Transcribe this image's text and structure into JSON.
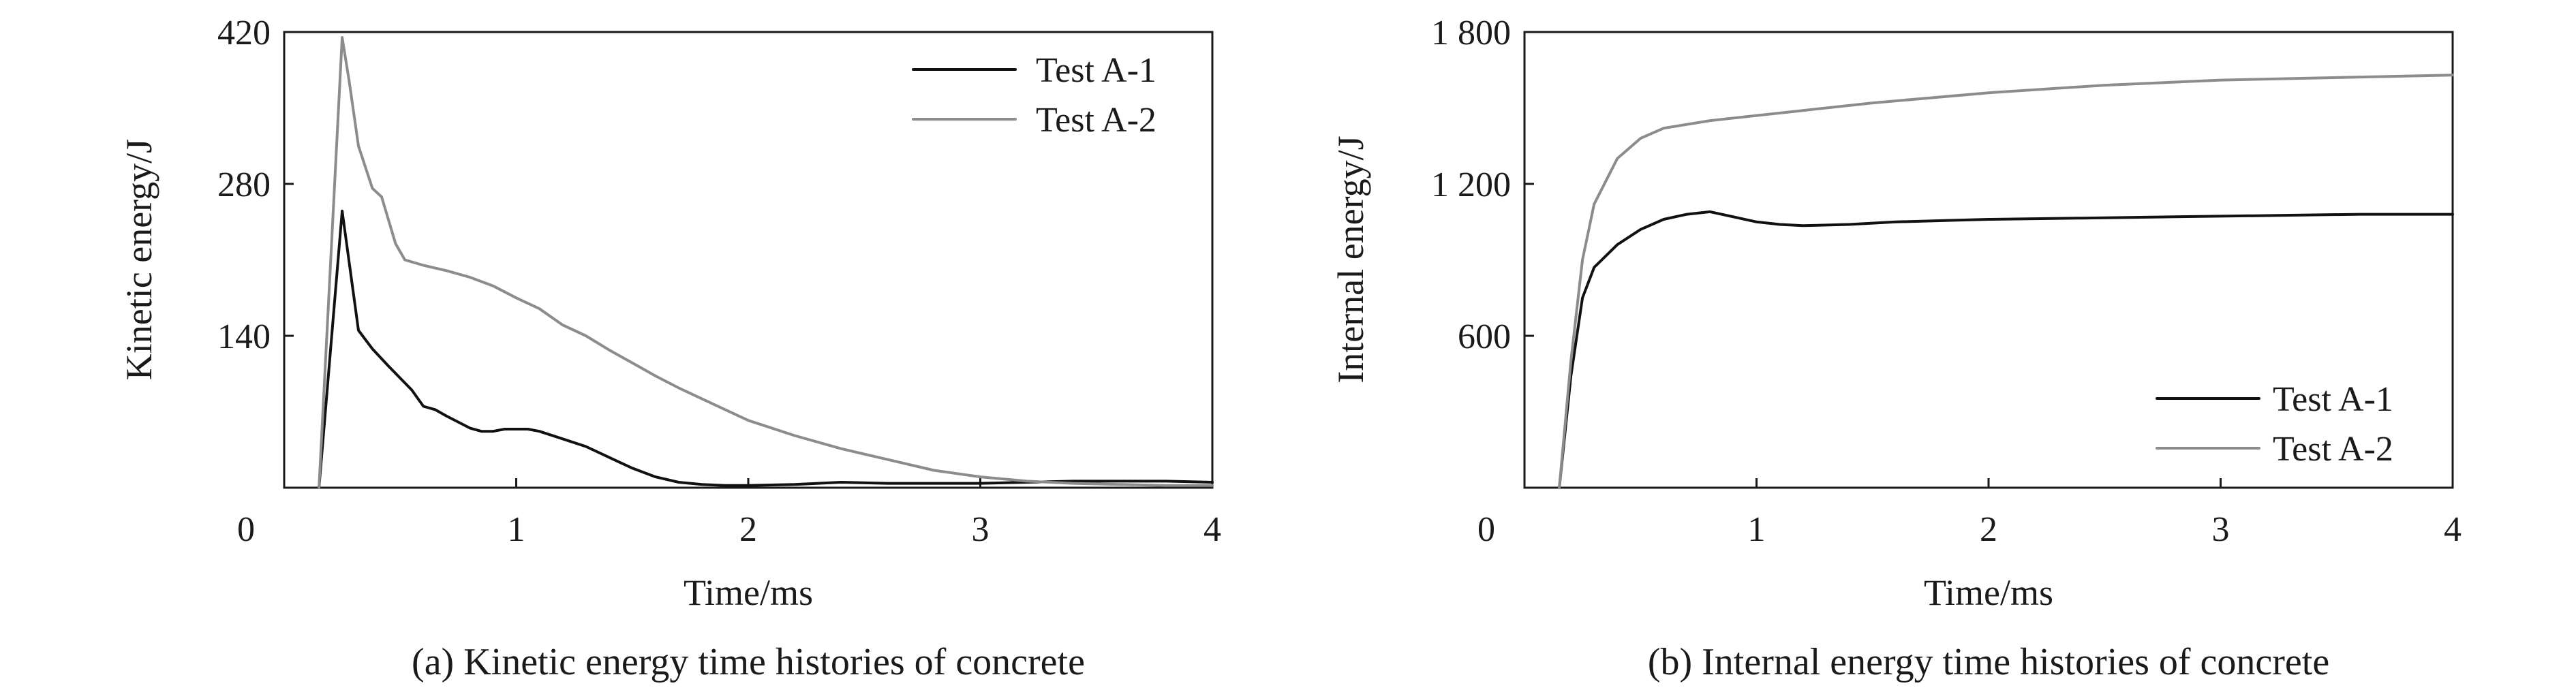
{
  "colors": {
    "test_a1": "#111111",
    "test_a2": "#8c8c8c",
    "axis": "#1a1a1a"
  },
  "chart_data": [
    {
      "type": "line",
      "caption": "(a) Kinetic energy time histories of concrete",
      "xlabel": "Time/ms",
      "ylabel": "Kinetic energy/J",
      "xlim": [
        0,
        4
      ],
      "ylim": [
        0,
        420
      ],
      "x_ticks": [
        "0",
        "1",
        "2",
        "3",
        "4"
      ],
      "y_ticks": [
        "140",
        "280",
        "420"
      ],
      "x_tick_values": [
        0,
        1,
        2,
        3,
        4
      ],
      "y_tick_values": [
        140,
        280,
        420
      ],
      "grid": false,
      "legend_position": "top-right",
      "series": [
        {
          "name": "Test A-1",
          "color": "#111111",
          "x": [
            0.15,
            0.25,
            0.32,
            0.38,
            0.45,
            0.55,
            0.6,
            0.65,
            0.7,
            0.8,
            0.85,
            0.9,
            0.95,
            1.0,
            1.05,
            1.1,
            1.2,
            1.3,
            1.4,
            1.5,
            1.6,
            1.7,
            1.8,
            1.9,
            2.0,
            2.2,
            2.4,
            2.6,
            2.8,
            3.0,
            3.2,
            3.4,
            3.6,
            3.8,
            4.0
          ],
          "y": [
            0,
            255,
            145,
            128,
            112,
            90,
            75,
            72,
            66,
            55,
            52,
            52,
            54,
            54,
            54,
            52,
            45,
            38,
            28,
            18,
            10,
            5,
            3,
            2,
            2,
            3,
            5,
            4,
            4,
            4,
            5,
            6,
            6,
            6,
            5
          ]
        },
        {
          "name": "Test A-2",
          "color": "#8c8c8c",
          "x": [
            0.15,
            0.25,
            0.28,
            0.32,
            0.38,
            0.42,
            0.48,
            0.52,
            0.6,
            0.7,
            0.8,
            0.9,
            1.0,
            1.1,
            1.2,
            1.3,
            1.4,
            1.5,
            1.6,
            1.7,
            1.8,
            1.9,
            2.0,
            2.2,
            2.4,
            2.6,
            2.8,
            3.0,
            3.2,
            3.4,
            3.6,
            3.8,
            4.0
          ],
          "y": [
            0,
            415,
            375,
            315,
            276,
            268,
            225,
            210,
            205,
            200,
            194,
            186,
            175,
            165,
            150,
            140,
            127,
            115,
            103,
            92,
            82,
            72,
            62,
            48,
            36,
            26,
            16,
            10,
            6,
            4,
            3,
            2,
            2
          ]
        }
      ]
    },
    {
      "type": "line",
      "caption": "(b) Internal energy time histories of concrete",
      "xlabel": "Time/ms",
      "ylabel": "Internal energy/J",
      "xlim": [
        0,
        4
      ],
      "ylim": [
        0,
        1800
      ],
      "x_ticks": [
        "0",
        "1",
        "2",
        "3",
        "4"
      ],
      "y_ticks": [
        "600",
        "1 200",
        "1 800"
      ],
      "x_tick_values": [
        0,
        1,
        2,
        3,
        4
      ],
      "y_tick_values": [
        600,
        1200,
        1800
      ],
      "grid": false,
      "legend_position": "bottom-right",
      "series": [
        {
          "name": "Test A-1",
          "color": "#111111",
          "x": [
            0.15,
            0.2,
            0.25,
            0.3,
            0.4,
            0.5,
            0.6,
            0.7,
            0.8,
            0.9,
            1.0,
            1.1,
            1.2,
            1.4,
            1.6,
            1.8,
            2.0,
            2.4,
            2.8,
            3.2,
            3.6,
            4.0
          ],
          "y": [
            0,
            440,
            750,
            870,
            960,
            1020,
            1060,
            1080,
            1090,
            1070,
            1050,
            1040,
            1035,
            1040,
            1050,
            1055,
            1060,
            1065,
            1070,
            1075,
            1080,
            1080
          ]
        },
        {
          "name": "Test A-2",
          "color": "#8c8c8c",
          "x": [
            0.15,
            0.2,
            0.25,
            0.3,
            0.4,
            0.5,
            0.6,
            0.8,
            1.0,
            1.2,
            1.5,
            2.0,
            2.5,
            3.0,
            3.5,
            4.0
          ],
          "y": [
            0,
            500,
            900,
            1120,
            1300,
            1380,
            1420,
            1450,
            1470,
            1490,
            1520,
            1560,
            1590,
            1610,
            1620,
            1630
          ]
        }
      ]
    }
  ]
}
